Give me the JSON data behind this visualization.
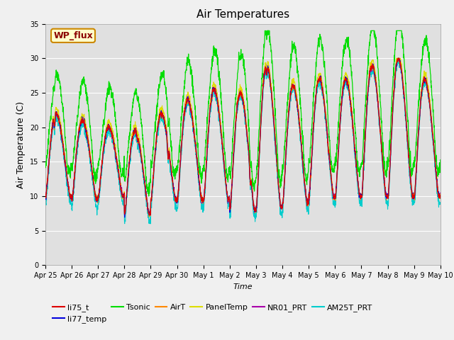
{
  "title": "Air Temperatures",
  "xlabel": "Time",
  "ylabel": "Air Temperature (C)",
  "ylim": [
    0,
    35
  ],
  "yticks": [
    0,
    5,
    10,
    15,
    20,
    25,
    30,
    35
  ],
  "fig_bg_color": "#f0f0f0",
  "plot_bg_color": "#e0e0e0",
  "grid_color": "#ffffff",
  "series_colors": {
    "li75_t": "#dd0000",
    "li77_temp": "#0000dd",
    "Tsonic": "#00dd00",
    "AirT": "#ff8800",
    "PanelTemp": "#dddd00",
    "NR01_PRT": "#aa00aa",
    "AM25T_PRT": "#00cccc"
  },
  "legend_label": "WP_flux",
  "x_tick_labels": [
    "Apr 25",
    "Apr 26",
    "Apr 27",
    "Apr 28",
    "Apr 29",
    "Apr 30",
    "May 1",
    "May 2",
    "May 3",
    "May 4",
    "May 5",
    "May 6",
    "May 7",
    "May 8",
    "May 9",
    "May 10"
  ],
  "n_days": 15,
  "n_pts_per_day": 144,
  "title_fontsize": 11,
  "tick_fontsize": 7,
  "label_fontsize": 9,
  "legend_fontsize": 8
}
